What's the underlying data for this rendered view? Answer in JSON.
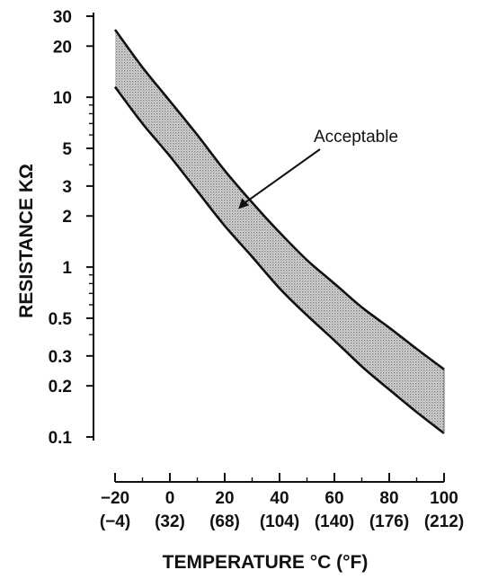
{
  "chart_data": {
    "type": "area",
    "title": "",
    "xlabel": "TEMPERATURE °C (°F)",
    "ylabel": "RESISTANCE KΩ",
    "yscale": "log",
    "xlim": [
      -20,
      100
    ],
    "ylim": [
      0.1,
      30
    ],
    "x_ticks": [
      -20,
      0,
      20,
      40,
      60,
      80,
      100
    ],
    "x_tick_labels": [
      "−20",
      "0",
      "20",
      "40",
      "60",
      "80",
      "100"
    ],
    "x_tick_sublabels": [
      "(−4)",
      "(32)",
      "(68)",
      "(104)",
      "(140)",
      "(176)",
      "(212)"
    ],
    "y_ticks": [
      0.1,
      0.2,
      0.3,
      0.5,
      1,
      2,
      3,
      5,
      10,
      20,
      30
    ],
    "y_tick_labels": [
      "0.1",
      "0.2",
      "0.3",
      "0.5",
      "1",
      "2",
      "3",
      "5",
      "10",
      "20",
      "30"
    ],
    "x": [
      -20,
      -10,
      0,
      10,
      20,
      30,
      40,
      50,
      60,
      70,
      80,
      90,
      100
    ],
    "series": [
      {
        "values": [
          25,
          15,
          9.5,
          6,
          3.7,
          2.4,
          1.6,
          1.1,
          0.8,
          0.58,
          0.44,
          0.33,
          0.25
        ]
      },
      {
        "values": [
          11.5,
          7,
          4.5,
          2.8,
          1.75,
          1.15,
          0.75,
          0.52,
          0.37,
          0.26,
          0.19,
          0.14,
          0.105
        ]
      }
    ],
    "band_color": "#b5b5b5",
    "line_color": "#111111",
    "annotations": [
      {
        "text": "Acceptable",
        "x": 25,
        "y": 2.2
      }
    ],
    "grid": false
  }
}
